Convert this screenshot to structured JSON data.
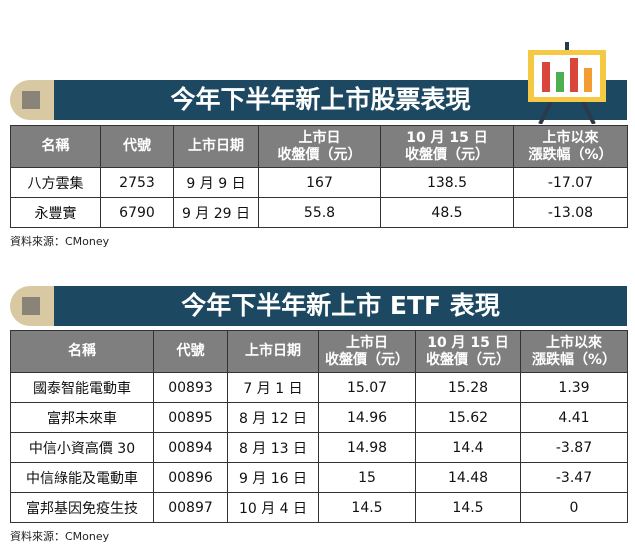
{
  "tables": [
    {
      "title": "今年下半年新上市股票表現",
      "headers": [
        [
          "名稱"
        ],
        [
          "代號"
        ],
        [
          "上市日期"
        ],
        [
          "上市日",
          "收盤價（元）"
        ],
        [
          "10 月 15 日",
          "收盤價（元）"
        ],
        [
          "上市以來",
          "漲跌幅（%）"
        ]
      ],
      "rows": [
        [
          "八方雲集",
          "2753",
          "9 月 9 日",
          "167",
          "138.5",
          "-17.07"
        ],
        [
          "永豐實",
          "6790",
          "9 月 29 日",
          "55.8",
          "48.5",
          "-13.08"
        ]
      ],
      "source": "資料來源：CMoney"
    },
    {
      "title": "今年下半年新上市 ETF 表現",
      "headers": [
        [
          "名稱"
        ],
        [
          "代號"
        ],
        [
          "上市日期"
        ],
        [
          "上市日",
          "收盤價（元）"
        ],
        [
          "10 月 15 日",
          "收盤價（元）"
        ],
        [
          "上市以來",
          "漲跌幅（%）"
        ]
      ],
      "rows": [
        [
          "國泰智能電動車",
          "00893",
          "7 月 1 日",
          "15.07",
          "15.28",
          "1.39"
        ],
        [
          "富邦未來車",
          "00895",
          "8 月 12 日",
          "14.96",
          "15.62",
          "4.41"
        ],
        [
          "中信小資高價 30",
          "00894",
          "8 月 13 日",
          "14.98",
          "14.4",
          "-3.87"
        ],
        [
          "中信綠能及電動車",
          "00896",
          "9 月 16 日",
          "15",
          "14.48",
          "-3.47"
        ],
        [
          "富邦基因免疫生技",
          "00897",
          "10 月 4 日",
          "14.5",
          "14.5",
          "0"
        ]
      ],
      "source": "資料來源：CMoney"
    }
  ]
}
